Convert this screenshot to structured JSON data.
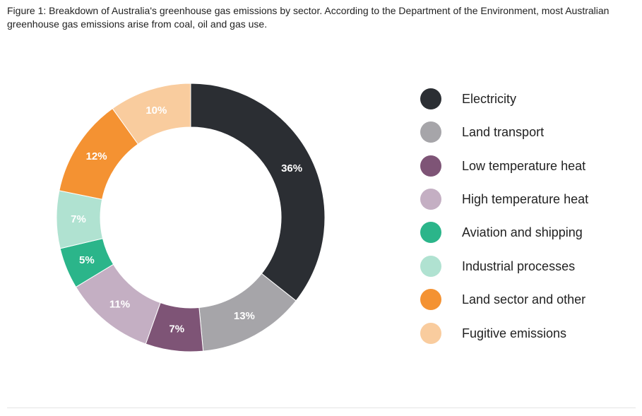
{
  "caption": "Figure 1: Breakdown of Australia's greenhouse gas emissions by sector. According to the Department of the Environment, most Australian greenhouse gas emissions arise from coal, oil and gas use.",
  "chart_data": {
    "type": "pie",
    "variant": "donut",
    "title": "Figure 1: Breakdown of Australia's greenhouse gas emissions by sector. According to the Department of the Environment, most Australian greenhouse gas emissions arise from coal, oil and gas use.",
    "legend_position": "right",
    "slices": [
      {
        "label": "Electricity",
        "value": 36,
        "display": "36%",
        "color": "#2b2e33"
      },
      {
        "label": "Land transport",
        "value": 13,
        "display": "13%",
        "color": "#a6a5a9"
      },
      {
        "label": "Low temperature heat",
        "value": 7,
        "display": "7%",
        "color": "#7e5476"
      },
      {
        "label": "High temperature heat",
        "value": 11,
        "display": "11%",
        "color": "#c4afc3"
      },
      {
        "label": "Aviation and shipping",
        "value": 5,
        "display": "5%",
        "color": "#2bb58a"
      },
      {
        "label": "Industrial processes",
        "value": 7,
        "display": "7%",
        "color": "#b0e2d1"
      },
      {
        "label": "Land sector and other",
        "value": 12,
        "display": "12%",
        "color": "#f49232"
      },
      {
        "label": "Fugitive emissions",
        "value": 10,
        "display": "10%",
        "color": "#f9cc9e"
      }
    ]
  }
}
